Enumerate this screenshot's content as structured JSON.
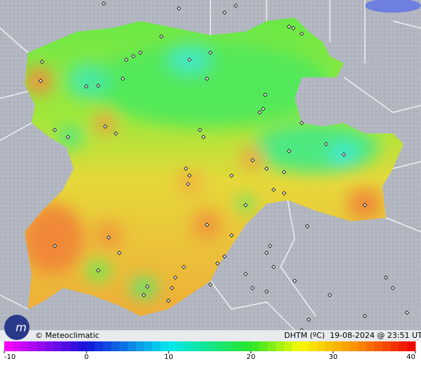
{
  "footer": {
    "credit": "© Meteoclimatic",
    "variable": "DHTM (ºC)",
    "timestamp": "19-08-2024 @ 23:51 UTC"
  },
  "legend": {
    "ticks": [
      -10,
      0,
      10,
      20,
      30,
      40
    ]
  }
}
